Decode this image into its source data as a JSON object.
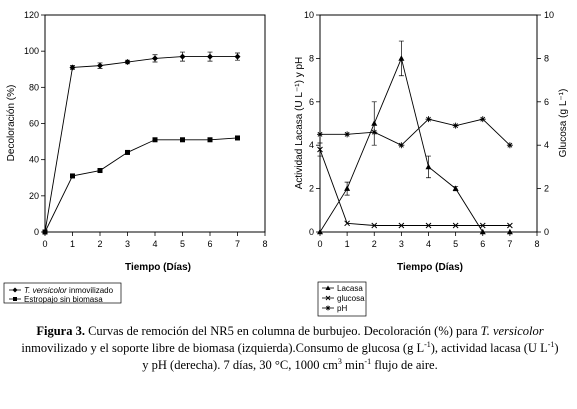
{
  "chart_data": [
    {
      "type": "line",
      "xlabel": "Tiempo (Días)",
      "ylabel": "Decoloración (%)",
      "xlim": [
        0,
        8
      ],
      "ylim": [
        0,
        120
      ],
      "xticks": [
        "0",
        "1",
        "2",
        "3",
        "4",
        "5",
        "6",
        "7",
        "8"
      ],
      "yticks": [
        "0",
        "20",
        "40",
        "60",
        "80",
        "100",
        "120"
      ],
      "series": [
        {
          "name_italic": "T. versicolor",
          "name_rest": " inmovilizado",
          "marker": "diamond",
          "x": [
            0,
            1,
            2,
            3,
            4,
            5,
            6,
            7
          ],
          "values": [
            0,
            91,
            92,
            94,
            96,
            97,
            97,
            97
          ],
          "err": [
            0,
            1,
            1.5,
            1,
            2,
            2.5,
            2.5,
            2
          ]
        },
        {
          "name": "Estropajo sin biomasa",
          "marker": "square",
          "x": [
            0,
            1,
            2,
            3,
            4,
            5,
            6,
            7
          ],
          "values": [
            0,
            31,
            34,
            44,
            51,
            51,
            51,
            52
          ],
          "err": [
            0,
            0,
            0,
            0,
            0,
            0,
            0,
            0
          ]
        }
      ],
      "legend": "bottom-left, boxed"
    },
    {
      "type": "line",
      "xlabel": "Tiempo (Días)",
      "ylabel_left": "Actividad Lacasa (U L⁻¹) y pH",
      "ylabel_right": "Glucosa (g L⁻¹)",
      "xlim": [
        0,
        8
      ],
      "ylim_left": [
        0,
        10
      ],
      "ylim_right": [
        0,
        10
      ],
      "xticks": [
        "0",
        "1",
        "2",
        "3",
        "4",
        "5",
        "6",
        "7",
        "8"
      ],
      "yticks_left": [
        "0",
        "2",
        "4",
        "6",
        "8",
        "10"
      ],
      "yticks_right": [
        "0",
        "2",
        "4",
        "6",
        "8",
        "10"
      ],
      "series": [
        {
          "name": "Lacasa",
          "marker": "triangle",
          "axis": "left",
          "x": [
            0,
            1,
            2,
            3,
            4,
            5,
            6,
            7
          ],
          "values": [
            0,
            2,
            5,
            8,
            3,
            2,
            0,
            0
          ],
          "err": [
            0,
            0.3,
            1,
            0.8,
            0.5,
            0.1,
            0,
            0
          ]
        },
        {
          "name": "glucosa",
          "marker": "x",
          "axis": "right",
          "x": [
            0,
            1,
            2,
            3,
            4,
            5,
            6,
            7
          ],
          "values": [
            3.8,
            0.4,
            0.3,
            0.3,
            0.3,
            0.3,
            0.3,
            0.3
          ],
          "err": [
            0.3,
            0,
            0,
            0,
            0,
            0,
            0,
            0
          ]
        },
        {
          "name": "pH",
          "marker": "star",
          "axis": "left",
          "x": [
            0,
            1,
            2,
            3,
            4,
            5,
            6,
            7
          ],
          "values": [
            4.5,
            4.5,
            4.6,
            4.0,
            5.2,
            4.9,
            5.2,
            4.0
          ],
          "err": [
            0,
            0,
            0,
            0,
            0,
            0,
            0,
            0
          ]
        }
      ],
      "legend": "bottom-left, boxed"
    }
  ],
  "caption": {
    "label": "Figura 3.",
    "t1": " Curvas de remoción del NR5 en columna de burbujeo. Decoloración (%) para ",
    "t2": "T. versicolor",
    "t3": " inmovilizado y el soporte libre de biomasa (izquierda).Consumo de glucosa (g L",
    "t4": "-1",
    "t5": "), actividad lacasa (U L",
    "t6": "-1",
    "t7": ") y pH (derecha). 7 días,  30 °C, 1000 cm",
    "t8": "3",
    "t9": " min",
    "t10": "-1",
    "t11": " flujo de aire."
  }
}
